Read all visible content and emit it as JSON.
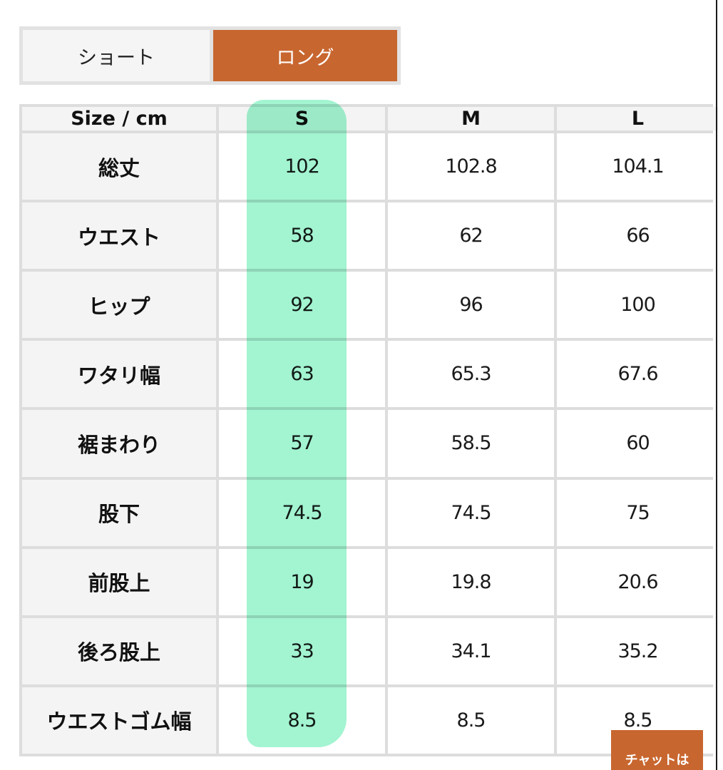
{
  "tabs": [
    {
      "label": "ショート",
      "active": false
    },
    {
      "label": "ロング",
      "active": true
    }
  ],
  "table": {
    "headers": [
      "Size / cm",
      "S",
      "M",
      "L"
    ],
    "rows": [
      {
        "label": "総丈",
        "values": [
          "102",
          "102.8",
          "104.1"
        ]
      },
      {
        "label": "ウエスト",
        "values": [
          "58",
          "62",
          "66"
        ]
      },
      {
        "label": "ヒップ",
        "values": [
          "92",
          "96",
          "100"
        ]
      },
      {
        "label": "ワタリ幅",
        "values": [
          "63",
          "65.3",
          "67.6"
        ]
      },
      {
        "label": "裾まわり",
        "values": [
          "57",
          "58.5",
          "60"
        ]
      },
      {
        "label": "股下",
        "values": [
          "74.5",
          "74.5",
          "75"
        ]
      },
      {
        "label": "前股上",
        "values": [
          "19",
          "19.8",
          "20.6"
        ]
      },
      {
        "label": "後ろ股上",
        "values": [
          "33",
          "34.1",
          "35.2"
        ]
      },
      {
        "label": "ウエストゴム幅",
        "values": [
          "8.5",
          "8.5",
          "8.5"
        ]
      }
    ]
  },
  "chat_button": {
    "label": "チャットは"
  },
  "colors": {
    "accent": "#c8662f",
    "highlight": "#7ff0c0"
  }
}
